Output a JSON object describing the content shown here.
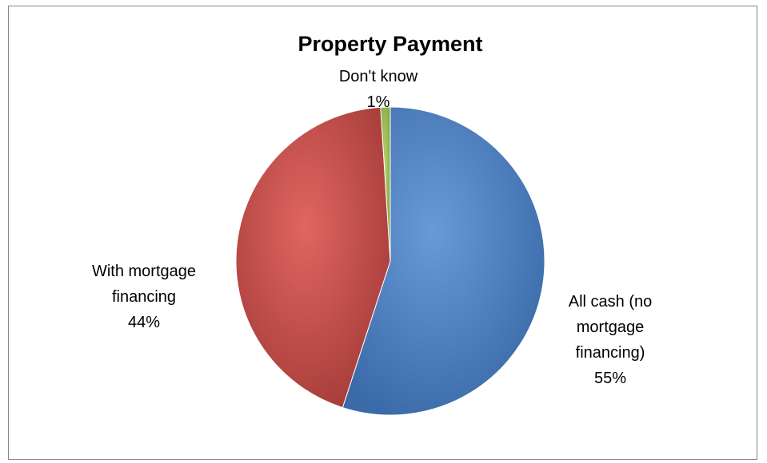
{
  "chart_data": {
    "type": "pie",
    "title": "Property Payment",
    "slices": [
      {
        "label_lines": [
          "All cash (no",
          "mortgage",
          "financing)"
        ],
        "value": 55,
        "value_label": "55%",
        "color": "#4a7ebb"
      },
      {
        "label_lines": [
          "With mortgage",
          "financing"
        ],
        "value": 44,
        "value_label": "44%",
        "color": "#be4b48"
      },
      {
        "label_lines": [
          "Don't know"
        ],
        "value": 1,
        "value_label": "1%",
        "color": "#98b954"
      }
    ],
    "legend": "none"
  }
}
